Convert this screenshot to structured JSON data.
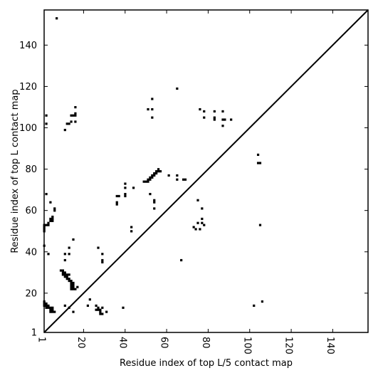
{
  "chart_data": {
    "type": "heatmap",
    "title": "",
    "xlabel": "Residue index of top L/5 contact map",
    "ylabel": "Residue index of top L contact map",
    "xlim": [
      1,
      157
    ],
    "ylim": [
      1,
      157
    ],
    "x_ticks": [
      1,
      20,
      40,
      60,
      80,
      100,
      120,
      140
    ],
    "y_ticks": [
      1,
      20,
      40,
      60,
      80,
      100,
      120,
      140
    ],
    "diagonal": true,
    "grid": false,
    "legend": "none",
    "color": "#000000",
    "upper_contacts": [
      [
        6,
        152
      ],
      [
        1,
        105
      ],
      [
        1,
        101
      ],
      [
        10,
        98
      ],
      [
        11,
        101
      ],
      [
        12,
        101
      ],
      [
        13,
        102
      ],
      [
        13,
        105
      ],
      [
        14,
        105
      ],
      [
        15,
        105
      ],
      [
        15,
        106
      ],
      [
        15,
        109
      ],
      [
        15,
        102
      ],
      [
        1,
        67
      ],
      [
        3,
        63
      ],
      [
        5,
        60
      ],
      [
        5,
        59
      ],
      [
        4,
        56
      ],
      [
        4,
        55
      ],
      [
        3,
        55
      ],
      [
        4,
        54
      ],
      [
        3,
        54
      ],
      [
        2,
        53
      ],
      [
        2,
        52
      ],
      [
        1,
        52
      ],
      [
        0,
        52
      ],
      [
        0,
        51
      ],
      [
        0,
        50
      ],
      [
        0,
        49
      ],
      [
        0,
        42
      ],
      [
        2,
        38
      ],
      [
        10,
        38
      ],
      [
        12,
        38
      ],
      [
        10,
        35
      ],
      [
        12,
        41
      ],
      [
        14,
        45
      ],
      [
        35,
        66
      ],
      [
        36,
        66
      ],
      [
        35,
        63
      ],
      [
        35,
        62
      ],
      [
        39,
        72
      ],
      [
        39,
        70
      ],
      [
        39,
        67
      ],
      [
        39,
        66
      ],
      [
        43,
        70
      ],
      [
        42,
        51
      ],
      [
        42,
        49
      ],
      [
        48,
        73
      ],
      [
        49,
        73
      ],
      [
        50,
        73
      ],
      [
        50,
        74
      ],
      [
        51,
        74
      ],
      [
        51,
        75
      ],
      [
        52,
        75
      ],
      [
        52,
        76
      ],
      [
        53,
        76
      ],
      [
        53,
        77
      ],
      [
        54,
        77
      ],
      [
        54,
        78
      ],
      [
        55,
        78
      ],
      [
        55,
        79
      ],
      [
        56,
        78
      ],
      [
        50,
        108
      ],
      [
        52,
        108
      ],
      [
        52,
        113
      ],
      [
        52,
        104
      ],
      [
        51,
        67
      ],
      [
        53,
        64
      ],
      [
        53,
        63
      ],
      [
        53,
        60
      ],
      [
        60,
        76
      ],
      [
        64,
        76
      ],
      [
        64,
        74
      ],
      [
        64,
        118
      ],
      [
        67,
        74
      ],
      [
        68,
        74
      ],
      [
        66,
        35
      ],
      [
        72,
        51
      ],
      [
        73,
        50
      ],
      [
        74,
        64
      ],
      [
        74,
        53
      ],
      [
        75,
        50
      ],
      [
        76,
        60
      ],
      [
        76,
        55
      ],
      [
        76,
        53
      ],
      [
        77,
        52
      ],
      [
        75,
        108
      ],
      [
        77,
        107
      ],
      [
        77,
        104
      ],
      [
        82,
        107
      ],
      [
        82,
        104
      ],
      [
        82,
        103
      ],
      [
        86,
        107
      ],
      [
        86,
        103
      ],
      [
        87,
        103
      ],
      [
        86,
        100
      ],
      [
        90,
        103
      ],
      [
        103,
        86
      ],
      [
        103,
        82
      ],
      [
        104,
        82
      ],
      [
        104,
        52
      ]
    ],
    "lower_contacts": [
      [
        8,
        30
      ],
      [
        9,
        30
      ],
      [
        9,
        29
      ],
      [
        10,
        29
      ],
      [
        10,
        28
      ],
      [
        9,
        28
      ],
      [
        10,
        27
      ],
      [
        11,
        27
      ],
      [
        11,
        28
      ],
      [
        12,
        28
      ],
      [
        11,
        26
      ],
      [
        12,
        26
      ],
      [
        12,
        25
      ],
      [
        13,
        25
      ],
      [
        13,
        24
      ],
      [
        14,
        24
      ],
      [
        13,
        23
      ],
      [
        14,
        23
      ],
      [
        13,
        22
      ],
      [
        14,
        22
      ],
      [
        13,
        21
      ],
      [
        14,
        21
      ],
      [
        15,
        21
      ],
      [
        16,
        22
      ],
      [
        0,
        15
      ],
      [
        0,
        14
      ],
      [
        1,
        14
      ],
      [
        0,
        13
      ],
      [
        1,
        13
      ],
      [
        2,
        13
      ],
      [
        1,
        12
      ],
      [
        2,
        12
      ],
      [
        3,
        12
      ],
      [
        4,
        12
      ],
      [
        3,
        11
      ],
      [
        4,
        11
      ],
      [
        3,
        10
      ],
      [
        4,
        10
      ],
      [
        5,
        10
      ],
      [
        10,
        13
      ],
      [
        12,
        12
      ],
      [
        14,
        10
      ],
      [
        22,
        16
      ],
      [
        21,
        13
      ],
      [
        25,
        13
      ],
      [
        26,
        12
      ],
      [
        25,
        11
      ],
      [
        26,
        11
      ],
      [
        27,
        11
      ],
      [
        28,
        12
      ],
      [
        27,
        10
      ],
      [
        30,
        10
      ],
      [
        27,
        9
      ],
      [
        28,
        9
      ],
      [
        26,
        41
      ],
      [
        28,
        38
      ],
      [
        28,
        35
      ],
      [
        28,
        34
      ],
      [
        38,
        12
      ],
      [
        101,
        13
      ],
      [
        105,
        15
      ]
    ]
  }
}
